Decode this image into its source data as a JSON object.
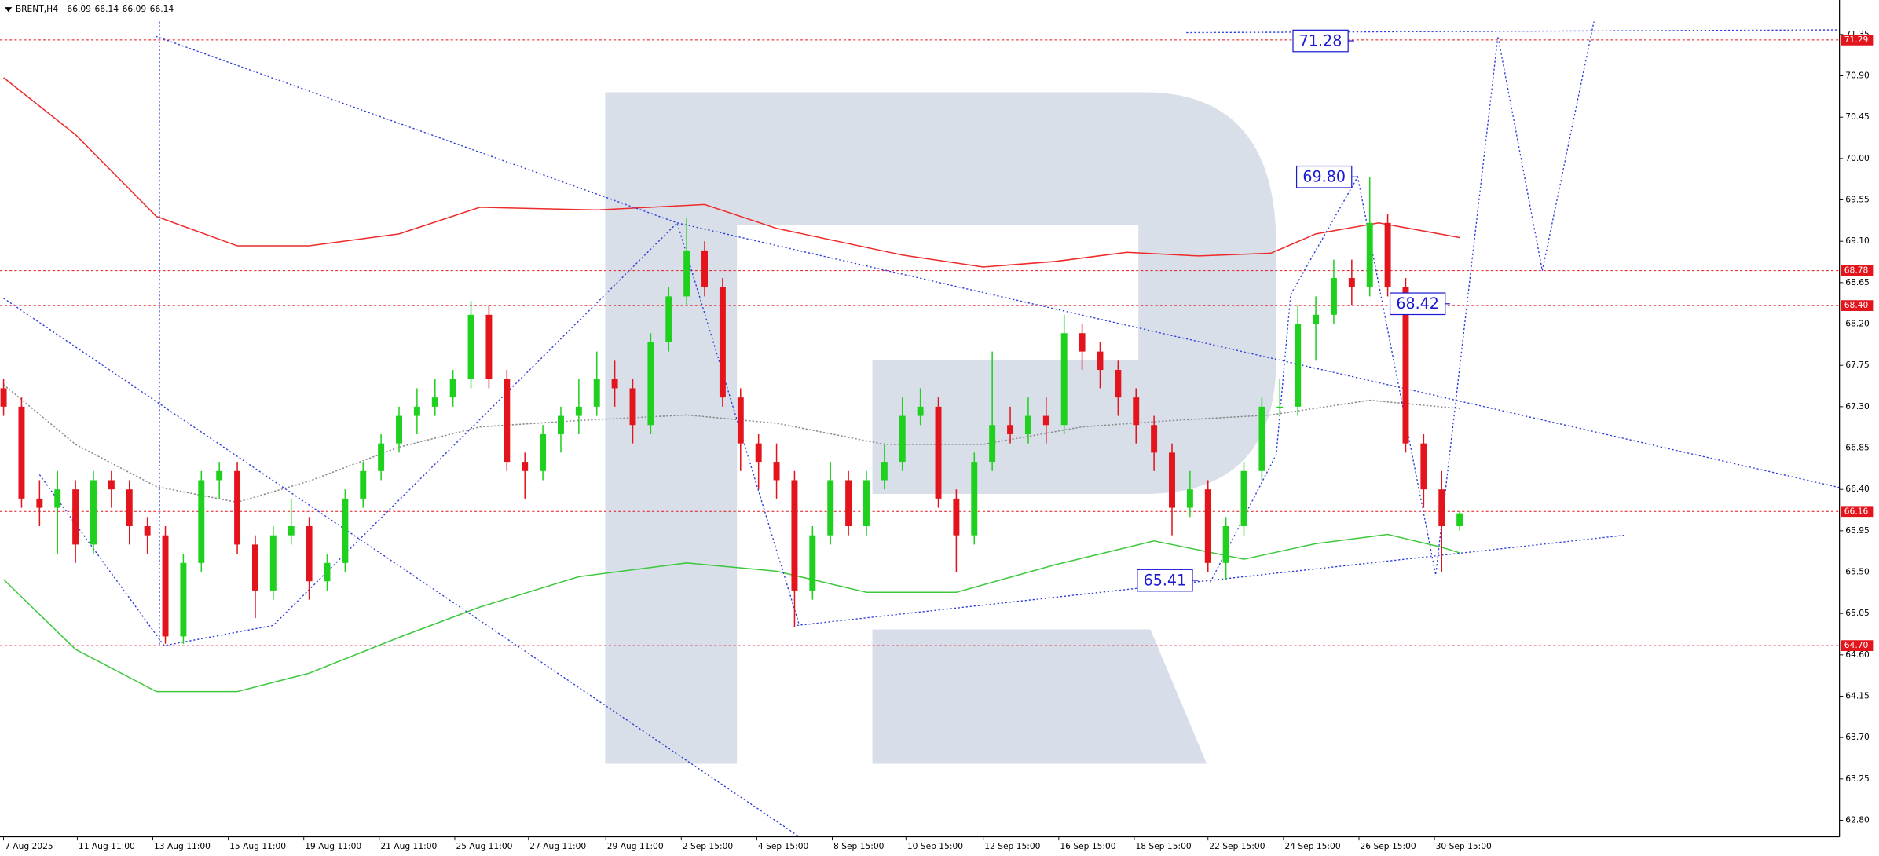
{
  "chart_data": {
    "type": "candlestick",
    "symbol": "BRENT,H4",
    "quote": [
      66.09,
      66.14,
      66.09,
      66.14
    ],
    "open": [
      67.5,
      67.3,
      66.3,
      66.2,
      66.4,
      65.8,
      66.5,
      66.4,
      66.0,
      65.9,
      64.8,
      65.6,
      66.5,
      66.6,
      65.8,
      65.3,
      65.9,
      66.0,
      65.4,
      65.6,
      66.3,
      66.6,
      66.9,
      67.2,
      67.3,
      67.4,
      67.6,
      68.3,
      67.6,
      66.7,
      66.6,
      67.0,
      67.2,
      67.3,
      67.6,
      67.5,
      67.1,
      68.0,
      68.5,
      69.0,
      68.6,
      67.4,
      66.9,
      66.7,
      66.5,
      65.3,
      65.9,
      66.5,
      66.0,
      66.5,
      66.7,
      67.2,
      67.3,
      66.3,
      65.9,
      66.7,
      67.1,
      67.0,
      67.2,
      67.1,
      68.1,
      67.9,
      67.7,
      67.4,
      67.1,
      66.8,
      66.2,
      66.4,
      65.6,
      66.0,
      66.6,
      67.3,
      67.3,
      68.2,
      68.3,
      68.7,
      68.6,
      69.3,
      68.6,
      66.9,
      66.4,
      66.0
    ],
    "high": [
      67.6,
      67.4,
      66.5,
      66.6,
      66.5,
      66.6,
      66.6,
      66.5,
      66.1,
      66.0,
      65.7,
      66.6,
      66.7,
      66.7,
      65.9,
      66.0,
      66.3,
      66.1,
      65.7,
      66.4,
      66.7,
      67.0,
      67.3,
      67.5,
      67.6,
      67.7,
      68.45,
      68.4,
      67.7,
      66.8,
      67.1,
      67.3,
      67.6,
      67.9,
      67.8,
      67.6,
      68.1,
      68.6,
      69.35,
      69.1,
      68.7,
      67.5,
      67.0,
      66.9,
      66.6,
      66.0,
      66.7,
      66.6,
      66.6,
      66.9,
      67.4,
      67.5,
      67.4,
      66.4,
      66.8,
      67.9,
      67.3,
      67.4,
      67.4,
      68.3,
      68.2,
      68.0,
      67.8,
      67.5,
      67.2,
      66.9,
      66.6,
      66.5,
      66.1,
      66.7,
      67.4,
      67.6,
      68.4,
      68.5,
      68.9,
      68.9,
      69.8,
      69.4,
      68.7,
      67.0,
      66.6,
      66.16
    ],
    "low": [
      67.2,
      66.2,
      66.0,
      65.7,
      65.6,
      65.7,
      66.2,
      65.8,
      65.7,
      64.72,
      64.72,
      65.5,
      66.3,
      65.7,
      65.0,
      65.2,
      65.8,
      65.2,
      65.3,
      65.5,
      66.2,
      66.5,
      66.8,
      67.0,
      67.2,
      67.3,
      67.5,
      67.5,
      66.6,
      66.3,
      66.5,
      66.8,
      67.0,
      67.2,
      67.3,
      66.9,
      67.0,
      67.9,
      68.4,
      68.5,
      67.3,
      66.6,
      66.4,
      66.3,
      64.9,
      65.2,
      65.8,
      65.9,
      65.9,
      66.4,
      66.6,
      67.1,
      66.2,
      65.5,
      65.8,
      66.6,
      66.9,
      66.9,
      66.9,
      67.0,
      67.7,
      67.5,
      67.2,
      66.9,
      66.6,
      65.9,
      66.1,
      65.5,
      65.41,
      65.9,
      66.5,
      67.2,
      67.2,
      67.8,
      68.2,
      68.4,
      68.5,
      68.5,
      66.8,
      66.2,
      65.5,
      65.95
    ],
    "close": [
      67.3,
      66.3,
      66.2,
      66.4,
      65.8,
      66.5,
      66.4,
      66.0,
      65.9,
      64.8,
      65.6,
      66.5,
      66.6,
      65.8,
      65.3,
      65.9,
      66.0,
      65.4,
      65.6,
      66.3,
      66.6,
      66.9,
      67.2,
      67.3,
      67.4,
      67.6,
      68.3,
      67.6,
      66.7,
      66.6,
      67.0,
      67.2,
      67.3,
      67.6,
      67.5,
      67.1,
      68.0,
      68.5,
      69.0,
      68.6,
      67.4,
      66.9,
      66.7,
      66.5,
      65.3,
      65.9,
      66.5,
      66.0,
      66.5,
      66.7,
      67.2,
      67.3,
      66.3,
      65.9,
      66.7,
      67.1,
      67.0,
      67.2,
      67.1,
      68.1,
      67.9,
      67.7,
      67.4,
      67.1,
      66.8,
      66.2,
      66.4,
      65.6,
      66.0,
      66.6,
      67.3,
      67.3,
      68.2,
      68.3,
      68.7,
      68.6,
      69.3,
      68.6,
      66.9,
      66.4,
      66.0,
      66.14
    ],
    "colors": {
      "up": "#1fd01f",
      "down": "#e3141b",
      "level": "#e3141b",
      "trend": "#2f3fd8",
      "annotation": "#1a1ad2"
    },
    "xlim": [
      -0.2,
      102.13
    ],
    "xticks": [
      {
        "value": 0,
        "label": "7 Aug 2025"
      },
      {
        "value": 4.1,
        "label": "11 Aug 11:00"
      },
      {
        "value": 8.3,
        "label": "13 Aug 11:00"
      },
      {
        "value": 12.5,
        "label": "15 Aug 11:00"
      },
      {
        "value": 16.7,
        "label": "19 Aug 11:00"
      },
      {
        "value": 20.9,
        "label": "21 Aug 11:00"
      },
      {
        "value": 25.1,
        "label": "25 Aug 11:00"
      },
      {
        "value": 29.2,
        "label": "27 Aug 11:00"
      },
      {
        "value": 33.5,
        "label": "29 Aug 11:00"
      },
      {
        "value": 37.7,
        "label": "2 Sep 15:00"
      },
      {
        "value": 41.9,
        "label": "4 Sep 15:00"
      },
      {
        "value": 46.1,
        "label": "8 Sep 15:00"
      },
      {
        "value": 50.2,
        "label": "10 Sep 15:00"
      },
      {
        "value": 54.5,
        "label": "12 Sep 15:00"
      },
      {
        "value": 58.7,
        "label": "16 Sep 15:00"
      },
      {
        "value": 62.9,
        "label": "18 Sep 15:00"
      },
      {
        "value": 67,
        "label": "22 Sep 15:00"
      },
      {
        "value": 71.2,
        "label": "24 Sep 15:00"
      },
      {
        "value": 75.4,
        "label": "26 Sep 15:00"
      },
      {
        "value": 79.6,
        "label": "30 Sep 15:00"
      }
    ],
    "ylim": [
      62.62,
      71.49
    ],
    "yticks": [
      71.35,
      {
        "value": 70.9,
        "label": "70.90"
      },
      {
        "value": 70.45,
        "label": "70.45"
      },
      {
        "value": 70,
        "label": "70.00"
      },
      69.55,
      {
        "value": 69.1,
        "label": "69.10"
      },
      68.65,
      {
        "value": 68.2,
        "label": "68.20"
      },
      67.75,
      {
        "value": 67.3,
        "label": "67.30"
      },
      66.85,
      {
        "value": 66.4,
        "label": "66.40"
      },
      65.95,
      {
        "value": 65.5,
        "label": "65.50"
      },
      65.05,
      {
        "value": 64.6,
        "label": "64.60"
      },
      64.15,
      {
        "value": 63.7,
        "label": "63.70"
      },
      63.25,
      {
        "value": 62.8,
        "label": "62.80"
      }
    ],
    "levels": [
      71.29,
      68.78,
      {
        "value": 68.4,
        "label": "68.40"
      },
      66.16,
      {
        "value": 64.7,
        "label": "64.70"
      }
    ],
    "moving_averages": [
      {
        "color": "#ee2a2a",
        "dashed": false,
        "x": [
          0,
          4,
          8.5,
          13,
          17,
          22,
          26.5,
          33,
          39,
          43,
          50,
          54.5,
          58.5,
          62.5,
          66.5,
          70.5,
          73,
          76.5,
          81
        ],
        "values": [
          70.88,
          70.26,
          69.37,
          69.05,
          69.05,
          69.18,
          69.47,
          69.44,
          69.5,
          69.24,
          68.95,
          68.82,
          68.88,
          68.98,
          68.94,
          68.97,
          69.18,
          69.3,
          69.14
        ]
      },
      {
        "color": "#3fc83f",
        "dashed": false,
        "x": [
          0,
          4,
          8.5,
          13,
          17,
          22,
          26.5,
          32,
          38,
          43,
          48,
          53,
          58.5,
          64,
          69,
          73,
          77,
          80,
          81
        ],
        "values": [
          65.42,
          64.66,
          64.2,
          64.2,
          64.4,
          64.79,
          65.12,
          65.45,
          65.6,
          65.51,
          65.28,
          65.28,
          65.58,
          65.84,
          65.64,
          65.81,
          65.91,
          65.77,
          65.71
        ]
      },
      {
        "color": "#8a8a8a",
        "dashed": true,
        "x": [
          0,
          4,
          8.5,
          13,
          17,
          22,
          26.5,
          32,
          38,
          43,
          49,
          54.5,
          60,
          65,
          70.5,
          76,
          81
        ],
        "values": [
          67.54,
          66.89,
          66.43,
          66.26,
          66.49,
          66.86,
          67.08,
          67.15,
          67.21,
          67.12,
          66.89,
          66.89,
          67.08,
          67.15,
          67.21,
          67.37,
          67.28
        ]
      }
    ],
    "trend_lines": [
      {
        "x": [
          8.47,
          37.47,
          102.13
        ],
        "values": [
          71.33,
          69.3,
          66.42
        ]
      },
      {
        "x": [
          0,
          44.27
        ],
        "values": [
          68.48,
          62.62
        ]
      },
      {
        "x": [
          44.13,
          90.13
        ],
        "values": [
          64.92,
          65.9
        ]
      },
      {
        "x": [
          8.67,
          8.67
        ],
        "values": [
          71.49,
          64.7
        ]
      },
      {
        "x": [
          65.8,
          102.13
        ],
        "values": [
          71.37,
          71.4
        ]
      },
      {
        "x": [
          2,
          8.93,
          15,
          37.47,
          44.27
        ],
        "values": [
          66.56,
          64.7,
          64.92,
          69.3,
          64.92
        ]
      },
      {
        "x": [
          67.13,
          70.8,
          71.6,
          75.33,
          79.67,
          83.13,
          85.6,
          88.47
        ],
        "values": [
          65.39,
          66.78,
          68.52,
          69.8,
          65.47,
          71.33,
          68.78,
          71.49
        ]
      }
    ],
    "annotations": [
      {
        "value": 71.28,
        "x": 75.13,
        "side": "left"
      },
      {
        "value": 69.8,
        "label": "69.80",
        "x": 75.33,
        "side": "left"
      },
      {
        "value": 68.42,
        "x": 77.13,
        "side": "right"
      },
      {
        "value": 65.41,
        "x": 66.47,
        "side": "left"
      }
    ]
  }
}
